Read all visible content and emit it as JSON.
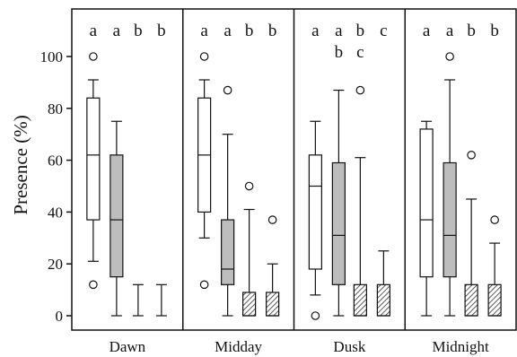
{
  "chart_data": {
    "type": "box",
    "ylabel": "Presence (%)",
    "ylim": [
      0,
      120
    ],
    "y_ticks": [
      0,
      20,
      40,
      60,
      80,
      100
    ],
    "y_tick_labels": [
      "0",
      "20",
      "40",
      "60",
      "80",
      "100"
    ],
    "panels": [
      {
        "name": "Dawn",
        "letters": [
          "a",
          "a",
          "b",
          "b"
        ],
        "letters2": [
          "",
          "",
          "",
          ""
        ],
        "boxes": [
          {
            "fill": "white",
            "min": 21,
            "q1": 37,
            "median": 62,
            "q3": 84,
            "max": 91,
            "outliers": [
              100,
              12
            ]
          },
          {
            "fill": "gray",
            "min": 0,
            "q1": 15,
            "median": 37,
            "q3": 62,
            "max": 75,
            "outliers": []
          },
          {
            "fill": "hatch",
            "min": 0,
            "q1": 0,
            "median": 0,
            "q3": 0,
            "max": 12,
            "outliers": []
          },
          {
            "fill": "hatch",
            "min": 0,
            "q1": 0,
            "median": 0,
            "q3": 0,
            "max": 12,
            "outliers": []
          }
        ]
      },
      {
        "name": "Midday",
        "letters": [
          "a",
          "a",
          "b",
          "b"
        ],
        "letters2": [
          "",
          "",
          "",
          ""
        ],
        "boxes": [
          {
            "fill": "white",
            "min": 30,
            "q1": 40,
            "median": 62,
            "q3": 84,
            "max": 91,
            "outliers": [
              100,
              12
            ]
          },
          {
            "fill": "gray",
            "min": 0,
            "q1": 12,
            "median": 18,
            "q3": 37,
            "max": 70,
            "outliers": [
              87
            ]
          },
          {
            "fill": "hatch",
            "min": 0,
            "q1": 0,
            "median": 0,
            "q3": 9,
            "max": 41,
            "outliers": [
              50
            ]
          },
          {
            "fill": "hatch",
            "min": 0,
            "q1": 0,
            "median": 0,
            "q3": 9,
            "max": 20,
            "outliers": [
              37
            ]
          }
        ]
      },
      {
        "name": "Dusk",
        "letters": [
          "a",
          "a",
          "b",
          "c"
        ],
        "letters2": [
          "",
          "b",
          "c",
          ""
        ],
        "boxes": [
          {
            "fill": "white",
            "min": 8,
            "q1": 18,
            "median": 50,
            "q3": 62,
            "max": 75,
            "outliers": [
              0
            ]
          },
          {
            "fill": "gray",
            "min": 0,
            "q1": 12,
            "median": 31,
            "q3": 59,
            "max": 87,
            "outliers": []
          },
          {
            "fill": "hatch",
            "min": 0,
            "q1": 0,
            "median": 0,
            "q3": 12,
            "max": 61,
            "outliers": [
              87
            ]
          },
          {
            "fill": "hatch",
            "min": 0,
            "q1": 0,
            "median": 0,
            "q3": 12,
            "max": 25,
            "outliers": []
          }
        ]
      },
      {
        "name": "Midnight",
        "letters": [
          "a",
          "a",
          "b",
          "b"
        ],
        "letters2": [
          "",
          "",
          "",
          ""
        ],
        "boxes": [
          {
            "fill": "white",
            "min": 0,
            "q1": 15,
            "median": 37,
            "q3": 72,
            "max": 75,
            "outliers": []
          },
          {
            "fill": "gray",
            "min": 0,
            "q1": 15,
            "median": 31,
            "q3": 59,
            "max": 91,
            "outliers": [
              100
            ]
          },
          {
            "fill": "hatch",
            "min": 0,
            "q1": 0,
            "median": 0,
            "q3": 12,
            "max": 45,
            "outliers": [
              62
            ]
          },
          {
            "fill": "hatch",
            "min": 0,
            "q1": 0,
            "median": 0,
            "q3": 12,
            "max": 28,
            "outliers": [
              37
            ]
          }
        ]
      }
    ],
    "colors": {
      "white_box": "#ffffff",
      "gray_box": "#bdbdbd",
      "line": "#111111",
      "hatch": "#333333"
    }
  }
}
